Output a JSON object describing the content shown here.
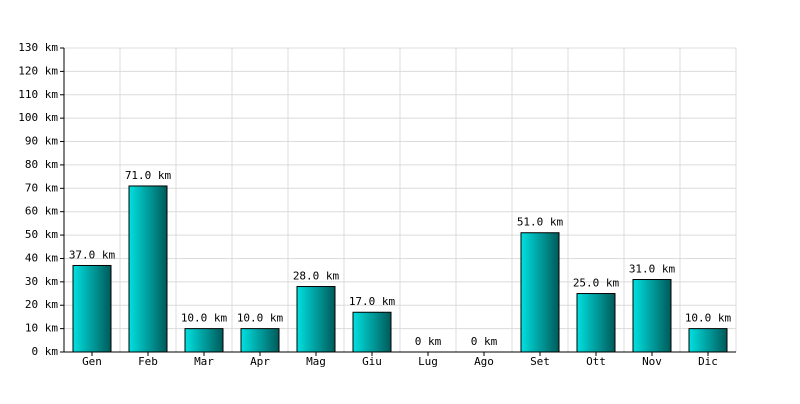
{
  "chart_data": {
    "type": "bar",
    "categories": [
      "Gen",
      "Feb",
      "Mar",
      "Apr",
      "Mag",
      "Giu",
      "Lug",
      "Ago",
      "Set",
      "Ott",
      "Nov",
      "Dic"
    ],
    "values": [
      37,
      71,
      10,
      10,
      28,
      17,
      0,
      0,
      51,
      25,
      31,
      10
    ],
    "value_labels": [
      "37.0 km",
      "71.0 km",
      "10.0 km",
      "10.0 km",
      "28.0 km",
      "17.0 km",
      "0 km",
      "0 km",
      "51.0 km",
      "25.0 km",
      "31.0 km",
      "10.0 km"
    ],
    "color": "#00e0e0",
    "ylim": [
      0,
      130
    ],
    "yticks": [
      {
        "value": 0,
        "label": "0 km"
      },
      {
        "value": 10,
        "label": "10 km"
      },
      {
        "value": 20,
        "label": "20 km"
      },
      {
        "value": 30,
        "label": "30 km"
      },
      {
        "value": 40,
        "label": "40 km"
      },
      {
        "value": 50,
        "label": "50 km"
      },
      {
        "value": 60,
        "label": "60 km"
      },
      {
        "value": 70,
        "label": "70 km"
      },
      {
        "value": 80,
        "label": "80 km"
      },
      {
        "value": 90,
        "label": "90 km"
      },
      {
        "value": 100,
        "label": "100 km"
      },
      {
        "value": 110,
        "label": "110 km"
      },
      {
        "value": 120,
        "label": "120 km"
      },
      {
        "value": 130,
        "label": "130 km"
      }
    ],
    "grid": true
  }
}
